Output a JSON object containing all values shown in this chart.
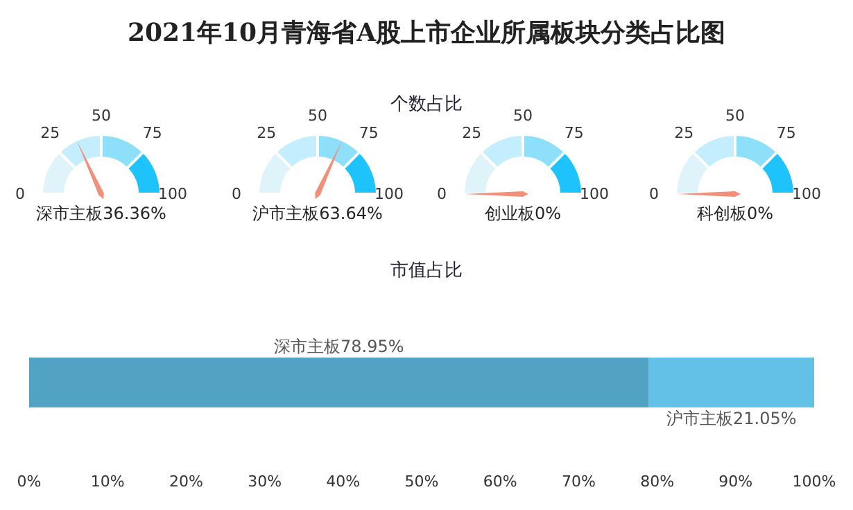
{
  "chart_data": [
    {
      "type": "other",
      "title": "2021年10月青海省A股上市企业所属板块分类占比图",
      "subtitle": "个数占比"
    },
    {
      "type": "other",
      "values": [
        36.36
      ],
      "value_labels": [
        "深市主板36.36%"
      ],
      "annotations": [
        "0",
        "25",
        "50",
        "75",
        "100"
      ]
    },
    {
      "type": "other",
      "values": [
        63.64
      ],
      "value_labels": [
        "沪市主板63.64%"
      ],
      "annotations": [
        "0",
        "25",
        "50",
        "75",
        "100"
      ]
    },
    {
      "type": "other",
      "values": [
        0
      ],
      "value_labels": [
        "创业板0%"
      ],
      "annotations": [
        "0",
        "25",
        "50",
        "75",
        "100"
      ]
    },
    {
      "type": "other",
      "values": [
        0
      ],
      "value_labels": [
        "科创板0%"
      ],
      "annotations": [
        "0",
        "25",
        "50",
        "75",
        "100"
      ]
    },
    {
      "type": "bar",
      "title": "市值占比",
      "orientation": "horizontal",
      "stacked": true,
      "categories": [
        null
      ],
      "series": [
        {
          "name": "深市主板",
          "color": "#52a2c4",
          "values": [
            78.95
          ],
          "value_labels": [
            "78.95%"
          ]
        },
        {
          "name": "沪市主板",
          "color": "#63c0e6",
          "values": [
            21.05
          ],
          "value_labels": [
            "21.05%"
          ]
        }
      ],
      "xlim": [
        0,
        100
      ],
      "xticks": [
        {
          "value": 0,
          "label": "0%"
        },
        {
          "value": 10,
          "label": "10%"
        },
        {
          "value": 20,
          "label": "20%"
        },
        {
          "value": 30,
          "label": "30%"
        },
        {
          "value": 40,
          "label": "40%"
        },
        {
          "value": 50,
          "label": "50%"
        },
        {
          "value": 60,
          "label": "60%"
        },
        {
          "value": 70,
          "label": "70%"
        },
        {
          "value": 80,
          "label": "80%"
        },
        {
          "value": 90,
          "label": "90%"
        },
        {
          "value": 100,
          "label": "100%"
        }
      ]
    }
  ]
}
